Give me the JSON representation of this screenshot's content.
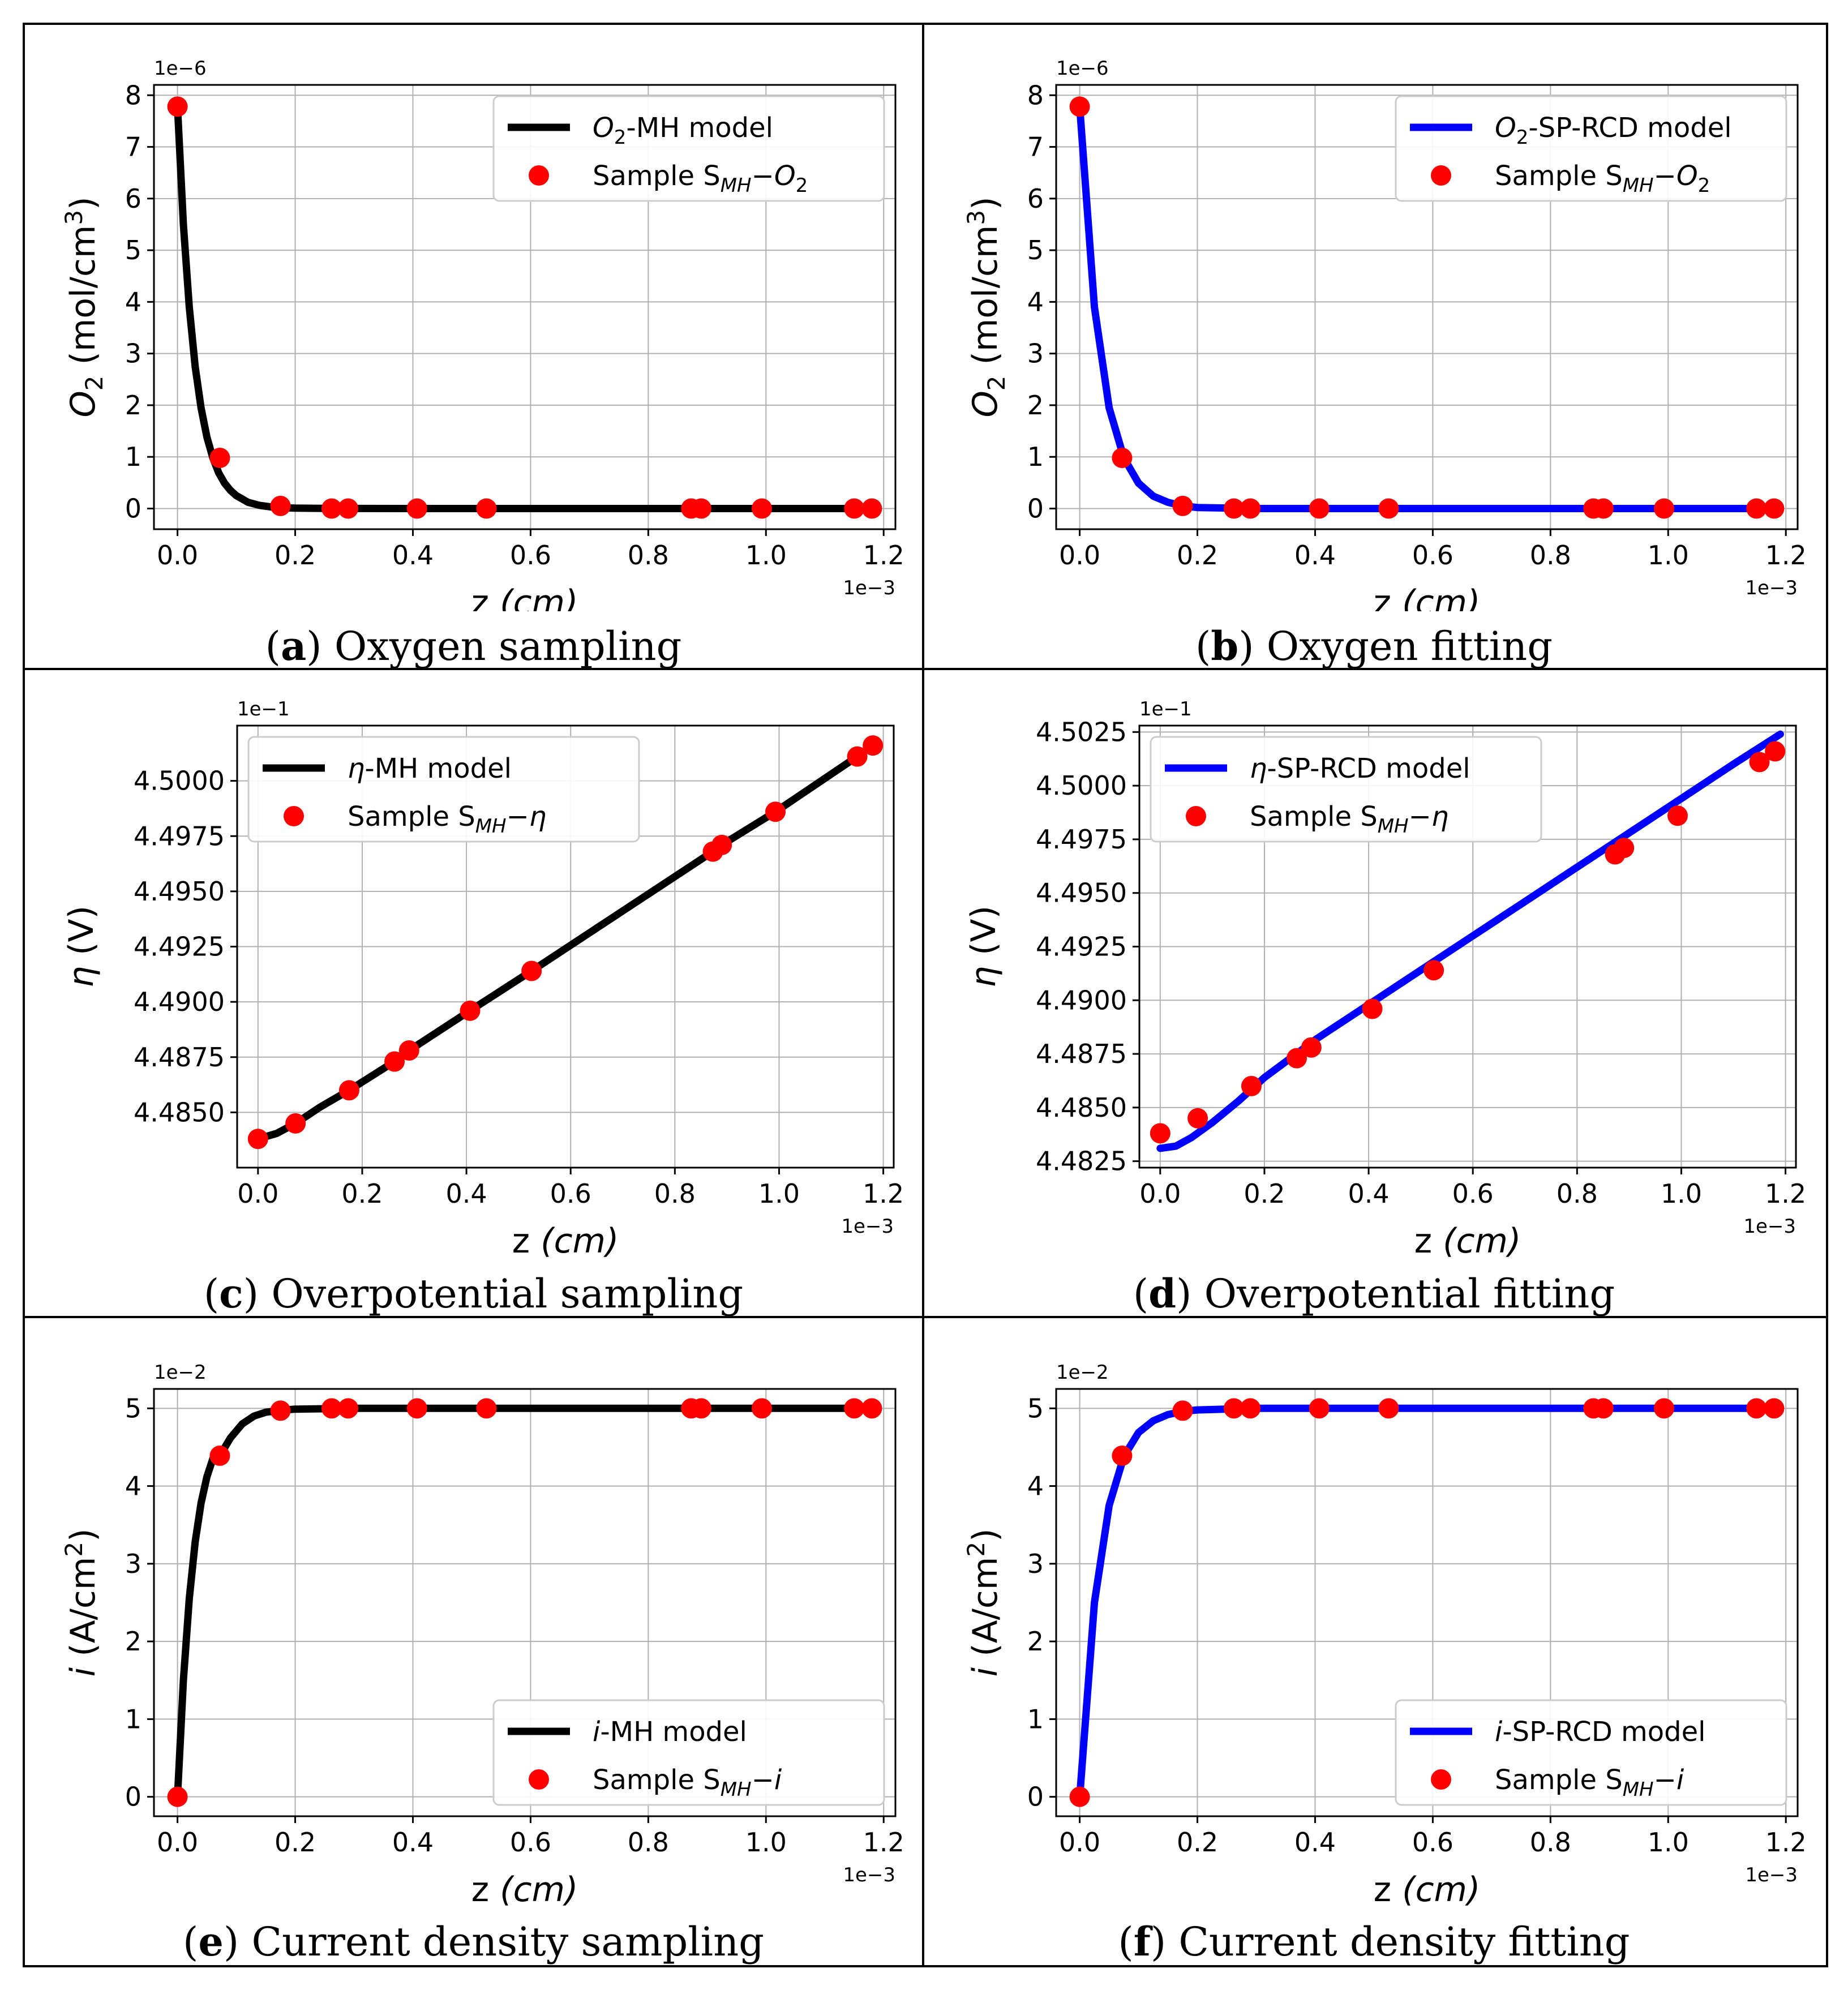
{
  "panels": [
    {
      "letter": "a",
      "caption_text": " Oxygen sampling",
      "chart": {
        "type": "line",
        "title": "",
        "xlabel_main": "z ",
        "xlabel_unit": "(cm)",
        "ylabel_main": "O",
        "ylabel_sub": "2",
        "ylabel_unit": " (mol/cm",
        "ylabel_sup": "3",
        "ylabel_close": ")",
        "x_offset_text": "1e−3",
        "y_offset_text": "1e−6",
        "xlim": [
          -0.04,
          1.22
        ],
        "ylim": [
          -0.4,
          8.2
        ],
        "xticks": [
          0.0,
          0.2,
          0.4,
          0.6,
          0.8,
          1.0,
          1.2
        ],
        "xtick_labels": [
          "0.0",
          "0.2",
          "0.4",
          "0.6",
          "0.8",
          "1.0",
          "1.2"
        ],
        "yticks": [
          0,
          1,
          2,
          3,
          4,
          5,
          6,
          7,
          8
        ],
        "ytick_labels": [
          "0",
          "1",
          "2",
          "3",
          "4",
          "5",
          "6",
          "7",
          "8"
        ],
        "line_color": "#000000",
        "model": "oxygen",
        "series": [
          {
            "name_pre": "O",
            "name_sub": "2",
            "name_post": "-MH model",
            "kind": "line",
            "x": [
              0.0,
              0.01,
              0.02,
              0.03,
              0.04,
              0.05,
              0.06,
              0.07,
              0.08,
              0.09,
              0.1,
              0.12,
              0.14,
              0.16,
              0.18,
              0.2,
              0.25,
              0.3,
              0.4,
              0.6,
              0.8,
              1.0,
              1.18
            ],
            "y": [
              7.78,
              5.5,
              3.9,
              2.75,
              1.95,
              1.38,
              0.98,
              0.69,
              0.49,
              0.35,
              0.25,
              0.12,
              0.06,
              0.03,
              0.015,
              0.008,
              0.002,
              0.0005,
              0.0,
              0.0,
              0.0,
              0.0,
              0.0
            ]
          },
          {
            "name_pre": "Sample S",
            "name_sub": "MH",
            "name_post": "−O",
            "name_sub2": "2",
            "kind": "scatter",
            "x": [
              0.0,
              0.072,
              0.175,
              0.262,
              0.29,
              0.407,
              0.525,
              0.873,
              0.89,
              0.993,
              1.15,
              1.18
            ],
            "y": [
              7.78,
              0.98,
              0.05,
              0.0,
              0.0,
              0.0,
              0.0,
              0.0,
              0.0,
              0.0,
              0.0,
              0.0
            ]
          }
        ],
        "legend_position": "top-right"
      }
    },
    {
      "letter": "b",
      "caption_text": " Oxygen fitting",
      "chart": {
        "type": "line",
        "title": "",
        "xlabel_main": "z ",
        "xlabel_unit": "(cm)",
        "ylabel_main": "O",
        "ylabel_sub": "2",
        "ylabel_unit": " (mol/cm",
        "ylabel_sup": "3",
        "ylabel_close": ")",
        "x_offset_text": "1e−3",
        "y_offset_text": "1e−6",
        "xlim": [
          -0.04,
          1.22
        ],
        "ylim": [
          -0.4,
          8.2
        ],
        "xticks": [
          0.0,
          0.2,
          0.4,
          0.6,
          0.8,
          1.0,
          1.2
        ],
        "xtick_labels": [
          "0.0",
          "0.2",
          "0.4",
          "0.6",
          "0.8",
          "1.0",
          "1.2"
        ],
        "yticks": [
          0,
          1,
          2,
          3,
          4,
          5,
          6,
          7,
          8
        ],
        "ytick_labels": [
          "0",
          "1",
          "2",
          "3",
          "4",
          "5",
          "6",
          "7",
          "8"
        ],
        "line_color": "#0000ff",
        "series": [
          {
            "name_pre": "O",
            "name_sub": "2",
            "name_post": "-SP-RCD model",
            "kind": "line",
            "x": [
              0.0,
              0.025,
              0.05,
              0.075,
              0.1,
              0.125,
              0.15,
              0.175,
              0.2,
              0.3,
              0.4,
              0.6,
              0.8,
              1.0,
              1.18
            ],
            "y": [
              7.78,
              3.9,
              1.95,
              0.98,
              0.49,
              0.24,
              0.12,
              0.05,
              0.02,
              0.0,
              0.0,
              0.0,
              0.0,
              0.0,
              0.0
            ]
          },
          {
            "name_pre": "Sample S",
            "name_sub": "MH",
            "name_post": "−O",
            "name_sub2": "2",
            "kind": "scatter",
            "x": [
              0.0,
              0.072,
              0.175,
              0.262,
              0.29,
              0.407,
              0.525,
              0.873,
              0.89,
              0.993,
              1.15,
              1.18
            ],
            "y": [
              7.78,
              0.98,
              0.05,
              0.0,
              0.0,
              0.0,
              0.0,
              0.0,
              0.0,
              0.0,
              0.0,
              0.0
            ]
          }
        ],
        "legend_position": "top-right"
      }
    },
    {
      "letter": "c",
      "caption_text": " Overpotential sampling",
      "chart": {
        "type": "line",
        "title": "",
        "xlabel_main": "z ",
        "xlabel_unit": "(cm)",
        "ylabel_main": "η",
        "ylabel_sub": "",
        "ylabel_unit": " (V)",
        "ylabel_sup": "",
        "ylabel_close": "",
        "x_offset_text": "1e−3",
        "y_offset_text": "1e−1",
        "xlim": [
          -0.04,
          1.22
        ],
        "ylim": [
          4.4825,
          4.5025
        ],
        "xticks": [
          0.0,
          0.2,
          0.4,
          0.6,
          0.8,
          1.0,
          1.2
        ],
        "xtick_labels": [
          "0.0",
          "0.2",
          "0.4",
          "0.6",
          "0.8",
          "1.0",
          "1.2"
        ],
        "yticks": [
          4.485,
          4.4875,
          4.49,
          4.4925,
          4.495,
          4.4975,
          4.5
        ],
        "ytick_labels": [
          "4.4850",
          "4.4875",
          "4.4900",
          "4.4925",
          "4.4950",
          "4.4975",
          "4.5000"
        ],
        "line_color": "#000000",
        "series": [
          {
            "name_pre": "η",
            "name_sub": "",
            "name_post": "-MH model",
            "kind": "line",
            "x": [
              0.0,
              0.036,
              0.072,
              0.12,
              0.175,
              0.262,
              0.29,
              0.407,
              0.525,
              0.873,
              0.89,
              0.993,
              1.15,
              1.18
            ],
            "y": [
              4.4838,
              4.48405,
              4.4845,
              4.48525,
              4.486,
              4.4873,
              4.4878,
              4.4896,
              4.4914,
              4.4968,
              4.4971,
              4.4986,
              4.5011,
              4.5016
            ]
          },
          {
            "name_pre": "Sample S",
            "name_sub": "MH",
            "name_post": "−η",
            "name_sub2": "",
            "kind": "scatter",
            "x": [
              0.0,
              0.072,
              0.175,
              0.262,
              0.29,
              0.407,
              0.525,
              0.873,
              0.89,
              0.993,
              1.15,
              1.18
            ],
            "y": [
              4.4838,
              4.4845,
              4.486,
              4.4873,
              4.4878,
              4.4896,
              4.4914,
              4.4968,
              4.4971,
              4.4986,
              4.5011,
              4.5016
            ]
          }
        ],
        "legend_position": "top-left"
      }
    },
    {
      "letter": "d",
      "caption_text": " Overpotential fitting",
      "chart": {
        "type": "line",
        "title": "",
        "xlabel_main": "z ",
        "xlabel_unit": "(cm)",
        "ylabel_main": "η",
        "ylabel_sub": "",
        "ylabel_unit": " (V)",
        "ylabel_sup": "",
        "ylabel_close": "",
        "x_offset_text": "1e−3",
        "y_offset_text": "1e−1",
        "xlim": [
          -0.04,
          1.22
        ],
        "ylim": [
          4.4822,
          4.5028
        ],
        "xticks": [
          0.0,
          0.2,
          0.4,
          0.6,
          0.8,
          1.0,
          1.2
        ],
        "xtick_labels": [
          "0.0",
          "0.2",
          "0.4",
          "0.6",
          "0.8",
          "1.0",
          "1.2"
        ],
        "yticks": [
          4.4825,
          4.485,
          4.4875,
          4.49,
          4.4925,
          4.495,
          4.4975,
          4.5,
          4.5025
        ],
        "ytick_labels": [
          "4.4825",
          "4.4850",
          "4.4875",
          "4.4900",
          "4.4925",
          "4.4950",
          "4.4975",
          "4.5000",
          "4.5025"
        ],
        "line_color": "#0000ff",
        "series": [
          {
            "name_pre": "η",
            "name_sub": "",
            "name_post": "-SP-RCD model",
            "kind": "line",
            "x": [
              0.0,
              0.03,
              0.06,
              0.1,
              0.15,
              0.2,
              0.3,
              0.4,
              0.5,
              0.6,
              0.7,
              0.8,
              0.9,
              1.0,
              1.1,
              1.19
            ],
            "y": [
              4.4831,
              4.4832,
              4.4836,
              4.4843,
              4.4853,
              4.4864,
              4.4882,
              4.4898,
              4.4914,
              4.493,
              4.4946,
              4.4962,
              4.4978,
              4.4994,
              4.501,
              4.5024
            ]
          },
          {
            "name_pre": "Sample S",
            "name_sub": "MH",
            "name_post": "−η",
            "name_sub2": "",
            "kind": "scatter",
            "x": [
              0.0,
              0.072,
              0.175,
              0.262,
              0.29,
              0.407,
              0.525,
              0.873,
              0.89,
              0.993,
              1.15,
              1.18
            ],
            "y": [
              4.4838,
              4.4845,
              4.486,
              4.4873,
              4.4878,
              4.4896,
              4.4914,
              4.4968,
              4.4971,
              4.4986,
              4.5011,
              4.5016
            ]
          }
        ],
        "legend_position": "top-left"
      }
    },
    {
      "letter": "e",
      "caption_text": " Current density sampling",
      "chart": {
        "type": "line",
        "title": "",
        "xlabel_main": "z ",
        "xlabel_unit": "(cm)",
        "ylabel_main": "i",
        "ylabel_sub": "",
        "ylabel_unit": " (A/cm",
        "ylabel_sup": "2",
        "ylabel_close": ")",
        "x_offset_text": "1e−3",
        "y_offset_text": "1e−2",
        "xlim": [
          -0.04,
          1.22
        ],
        "ylim": [
          -0.25,
          5.25
        ],
        "xticks": [
          0.0,
          0.2,
          0.4,
          0.6,
          0.8,
          1.0,
          1.2
        ],
        "xtick_labels": [
          "0.0",
          "0.2",
          "0.4",
          "0.6",
          "0.8",
          "1.0",
          "1.2"
        ],
        "yticks": [
          0,
          1,
          2,
          3,
          4,
          5
        ],
        "ytick_labels": [
          "0",
          "1",
          "2",
          "3",
          "4",
          "5"
        ],
        "line_color": "#000000",
        "series": [
          {
            "name_pre": "i",
            "name_sub": "",
            "name_post": "-MH model",
            "kind": "line",
            "x": [
              0.0,
              0.01,
              0.02,
              0.03,
              0.04,
              0.05,
              0.06,
              0.072,
              0.09,
              0.11,
              0.13,
              0.15,
              0.175,
              0.2,
              0.3,
              0.4,
              0.6,
              0.8,
              1.0,
              1.18
            ],
            "y": [
              0.0,
              1.5,
              2.55,
              3.28,
              3.78,
              4.12,
              4.35,
              4.39,
              4.62,
              4.8,
              4.9,
              4.95,
              4.975,
              4.99,
              5.0,
              5.0,
              5.0,
              5.0,
              5.0,
              5.0
            ]
          },
          {
            "name_pre": "Sample S",
            "name_sub": "MH",
            "name_post": "−i",
            "name_sub2": "",
            "kind": "scatter",
            "x": [
              0.0,
              0.072,
              0.175,
              0.262,
              0.29,
              0.407,
              0.525,
              0.873,
              0.89,
              0.993,
              1.15,
              1.18
            ],
            "y": [
              0.0,
              4.39,
              4.97,
              5.0,
              5.0,
              5.0,
              5.0,
              5.0,
              5.0,
              5.0,
              5.0,
              5.0
            ]
          }
        ],
        "legend_position": "bottom-right"
      }
    },
    {
      "letter": "f",
      "caption_text": " Current density fitting",
      "chart": {
        "type": "line",
        "title": "",
        "xlabel_main": "z ",
        "xlabel_unit": "(cm)",
        "ylabel_main": "i",
        "ylabel_sub": "",
        "ylabel_unit": " (A/cm",
        "ylabel_sup": "2",
        "ylabel_close": ")",
        "x_offset_text": "1e−3",
        "y_offset_text": "1e−2",
        "xlim": [
          -0.04,
          1.22
        ],
        "ylim": [
          -0.25,
          5.25
        ],
        "xticks": [
          0.0,
          0.2,
          0.4,
          0.6,
          0.8,
          1.0,
          1.2
        ],
        "xtick_labels": [
          "0.0",
          "0.2",
          "0.4",
          "0.6",
          "0.8",
          "1.0",
          "1.2"
        ],
        "yticks": [
          0,
          1,
          2,
          3,
          4,
          5
        ],
        "ytick_labels": [
          "0",
          "1",
          "2",
          "3",
          "4",
          "5"
        ],
        "line_color": "#0000ff",
        "series": [
          {
            "name_pre": "i",
            "name_sub": "",
            "name_post": "-SP-RCD model",
            "kind": "line",
            "x": [
              0.0,
              0.025,
              0.05,
              0.075,
              0.1,
              0.125,
              0.15,
              0.175,
              0.2,
              0.3,
              0.4,
              0.6,
              0.8,
              1.0,
              1.18
            ],
            "y": [
              0.0,
              2.5,
              3.75,
              4.38,
              4.69,
              4.84,
              4.92,
              4.96,
              4.98,
              5.0,
              5.0,
              5.0,
              5.0,
              5.0,
              5.0
            ]
          },
          {
            "name_pre": "Sample S",
            "name_sub": "MH",
            "name_post": "−i",
            "name_sub2": "",
            "kind": "scatter",
            "x": [
              0.0,
              0.072,
              0.175,
              0.262,
              0.29,
              0.407,
              0.525,
              0.873,
              0.89,
              0.993,
              1.15,
              1.18
            ],
            "y": [
              0.0,
              4.39,
              4.97,
              5.0,
              5.0,
              5.0,
              5.0,
              5.0,
              5.0,
              5.0,
              5.0,
              5.0
            ]
          }
        ],
        "legend_position": "bottom-right"
      }
    }
  ],
  "colors": {
    "scatter": "#ff0000",
    "grid": "#b0b0b0",
    "black_line": "#000000",
    "blue_line": "#0000ff"
  }
}
